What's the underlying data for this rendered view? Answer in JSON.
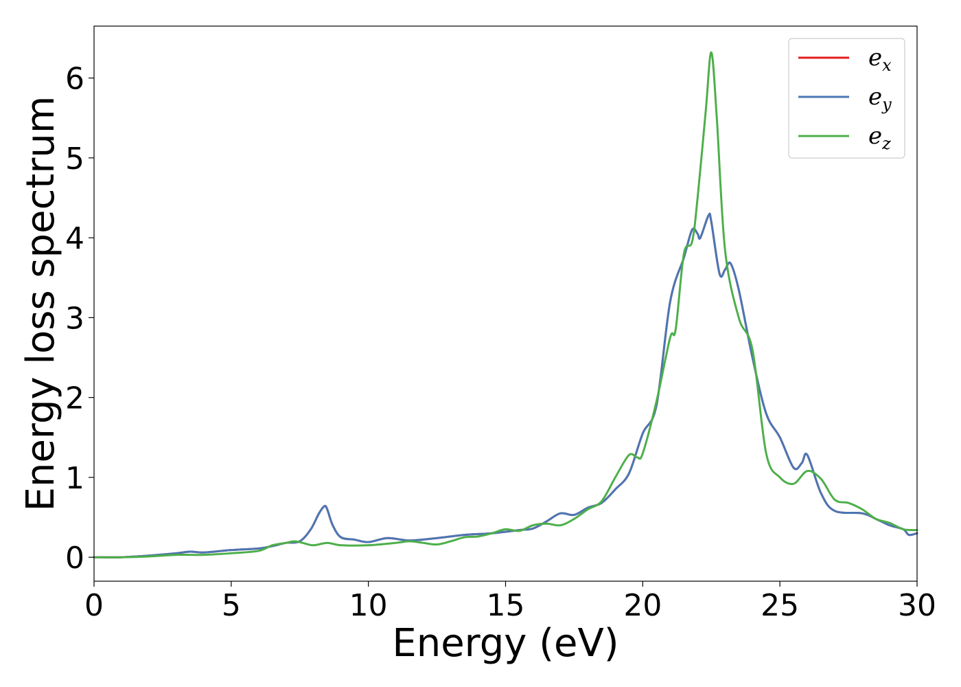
{
  "chart_data": {
    "type": "line",
    "title": "",
    "xlabel": "Energy (eV)",
    "ylabel": "Energy loss spectrum",
    "xlim": [
      0,
      30
    ],
    "ylim": [
      -0.3,
      6.65
    ],
    "xticks": [
      0,
      5,
      10,
      15,
      20,
      25,
      30
    ],
    "xtick_labels": [
      "0",
      "5",
      "10",
      "15",
      "20",
      "25",
      "30"
    ],
    "yticks": [
      0,
      1,
      2,
      3,
      4,
      5,
      6
    ],
    "ytick_labels": [
      "0",
      "1",
      "2",
      "3",
      "4",
      "5",
      "6"
    ],
    "grid": false,
    "legend_position": "top-right",
    "series": [
      {
        "name": "e_x",
        "label_base": "e",
        "label_sub": "x",
        "color": "#e41a1c",
        "x": [
          0,
          1,
          2,
          3,
          3.5,
          4,
          5,
          6,
          6.5,
          7,
          7.5,
          7.9,
          8.2,
          8.4,
          8.5,
          8.7,
          9,
          9.5,
          10,
          10.7,
          11.5,
          12.5,
          13.5,
          14.5,
          15.5,
          16,
          16.5,
          17,
          17.5,
          18,
          18.5,
          19,
          19.5,
          20,
          20.5,
          21,
          21.5,
          21.8,
          22,
          22.1,
          22.4,
          22.5,
          22.8,
          23,
          23.2,
          23.5,
          24,
          24.5,
          25,
          25.5,
          25.8,
          26,
          26.5,
          27,
          28,
          28.5,
          29,
          29.5,
          29.7,
          30
        ],
        "y": [
          0.0,
          0.0,
          0.02,
          0.05,
          0.07,
          0.06,
          0.09,
          0.11,
          0.14,
          0.18,
          0.2,
          0.35,
          0.55,
          0.64,
          0.6,
          0.4,
          0.25,
          0.22,
          0.19,
          0.24,
          0.21,
          0.24,
          0.28,
          0.3,
          0.34,
          0.36,
          0.45,
          0.55,
          0.53,
          0.62,
          0.68,
          0.85,
          1.05,
          1.55,
          1.9,
          3.2,
          3.75,
          4.1,
          4.05,
          4.0,
          4.28,
          4.2,
          3.55,
          3.6,
          3.68,
          3.35,
          2.5,
          1.8,
          1.5,
          1.12,
          1.18,
          1.28,
          0.8,
          0.58,
          0.55,
          0.48,
          0.4,
          0.35,
          0.28,
          0.3
        ]
      },
      {
        "name": "e_y",
        "label_base": "e",
        "label_sub": "y",
        "color": "#4a77b4",
        "x": [
          0,
          1,
          2,
          3,
          3.5,
          4,
          5,
          6,
          6.5,
          7,
          7.5,
          7.9,
          8.2,
          8.4,
          8.5,
          8.7,
          9,
          9.5,
          10,
          10.7,
          11.5,
          12.5,
          13.5,
          14.5,
          15.5,
          16,
          16.5,
          17,
          17.5,
          18,
          18.5,
          19,
          19.5,
          20,
          20.5,
          21,
          21.5,
          21.8,
          22,
          22.1,
          22.4,
          22.5,
          22.8,
          23,
          23.2,
          23.5,
          24,
          24.5,
          25,
          25.5,
          25.8,
          26,
          26.5,
          27,
          28,
          28.5,
          29,
          29.5,
          29.7,
          30
        ],
        "y": [
          0.0,
          0.0,
          0.02,
          0.05,
          0.07,
          0.06,
          0.09,
          0.11,
          0.14,
          0.18,
          0.2,
          0.35,
          0.55,
          0.64,
          0.6,
          0.4,
          0.25,
          0.22,
          0.19,
          0.24,
          0.21,
          0.24,
          0.28,
          0.3,
          0.34,
          0.36,
          0.45,
          0.55,
          0.53,
          0.62,
          0.68,
          0.85,
          1.05,
          1.55,
          1.9,
          3.2,
          3.75,
          4.1,
          4.05,
          4.0,
          4.28,
          4.2,
          3.55,
          3.6,
          3.68,
          3.35,
          2.5,
          1.8,
          1.5,
          1.12,
          1.18,
          1.28,
          0.8,
          0.58,
          0.55,
          0.48,
          0.4,
          0.35,
          0.28,
          0.3
        ]
      },
      {
        "name": "e_z",
        "label_base": "e",
        "label_sub": "z",
        "color": "#4daf4a",
        "x": [
          0,
          1,
          2,
          3,
          4,
          5,
          6,
          6.5,
          7,
          7.3,
          7.6,
          8,
          8.5,
          9,
          10,
          11,
          11.5,
          12,
          12.5,
          13,
          13.5,
          14,
          14.5,
          15,
          15.5,
          16,
          16.5,
          17,
          17.5,
          18,
          18.5,
          19,
          19.5,
          19.8,
          20,
          20.5,
          21,
          21.2,
          21.5,
          21.8,
          22,
          22.3,
          22.5,
          22.7,
          23,
          23.5,
          24,
          24.5,
          25,
          25.5,
          26,
          26.5,
          27,
          27.5,
          28,
          28.5,
          29,
          29.5,
          30
        ],
        "y": [
          0.0,
          0.0,
          0.01,
          0.03,
          0.03,
          0.05,
          0.08,
          0.15,
          0.18,
          0.2,
          0.18,
          0.15,
          0.18,
          0.15,
          0.15,
          0.18,
          0.2,
          0.18,
          0.16,
          0.2,
          0.25,
          0.26,
          0.3,
          0.35,
          0.33,
          0.4,
          0.42,
          0.4,
          0.48,
          0.6,
          0.7,
          1.0,
          1.28,
          1.25,
          1.3,
          1.95,
          2.75,
          2.85,
          3.8,
          3.95,
          4.5,
          5.6,
          6.32,
          5.5,
          3.85,
          3.0,
          2.6,
          1.3,
          1.0,
          0.92,
          1.08,
          0.98,
          0.72,
          0.68,
          0.6,
          0.48,
          0.43,
          0.35,
          0.34
        ]
      }
    ]
  }
}
